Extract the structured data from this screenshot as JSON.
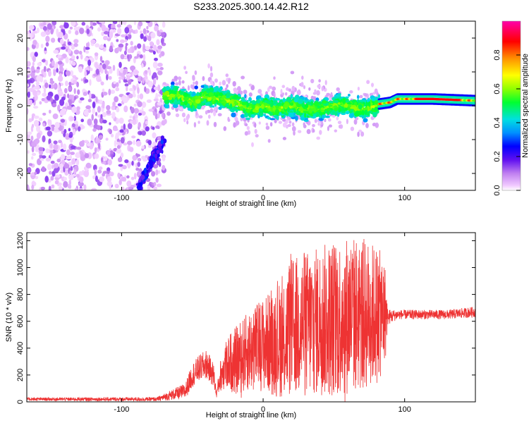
{
  "title": "S233.2025.300.14.42.R12",
  "chart_data": [
    {
      "type": "heatmap",
      "xlabel": "Height of straight line (km)",
      "ylabel": "Frequency (Hz)",
      "xlim": [
        -167,
        150
      ],
      "ylim": [
        -25,
        25
      ],
      "xticks": [
        -100,
        0,
        100
      ],
      "xtick_labels": [
        "-100",
        "0",
        "100"
      ],
      "yticks": [
        -20,
        -10,
        0,
        10,
        20
      ],
      "ytick_labels": [
        "-20",
        "-10",
        "0",
        "10",
        "20"
      ],
      "grid": false,
      "colorbar": {
        "label": "Normalized spectral amplitude",
        "range": [
          0,
          1
        ],
        "ticks": [
          0,
          0.2,
          0.4,
          0.6,
          0.8
        ],
        "tick_labels": [
          "0.0",
          "0.2",
          "0.4",
          "0.6",
          "0.8"
        ],
        "placement": "right"
      },
      "regions": [
        {
          "x": [
            -167,
            -70
          ],
          "freq": [
            -25,
            25
          ],
          "amplitude": [
            0.02,
            0.15
          ],
          "description": "scattered noise"
        },
        {
          "x": [
            -85,
            -70
          ],
          "freq": [
            -25,
            -10
          ],
          "amplitude": [
            0.15,
            0.3
          ]
        },
        {
          "x": [
            -70,
            82
          ],
          "freq": [
            -8,
            6
          ],
          "amplitude": [
            0.2,
            0.6
          ]
        },
        {
          "x": [
            82,
            150
          ],
          "freq": [
            0,
            3
          ],
          "amplitude": [
            0.6,
            1.0
          ]
        }
      ],
      "ridge": {
        "x": [
          -70,
          -60,
          -50,
          -40,
          -30,
          -20,
          -10,
          0,
          10,
          20,
          30,
          40,
          50,
          60,
          70,
          80,
          82,
          90,
          95,
          100,
          120,
          150
        ],
        "freq": [
          3,
          3,
          1,
          3,
          2,
          1,
          -1,
          0,
          -1,
          0,
          -1,
          -1,
          0,
          0,
          -1,
          0,
          0.5,
          1,
          2,
          2,
          2,
          1.5
        ]
      }
    },
    {
      "type": "line",
      "xlabel": "Height of straight line (km)",
      "ylabel": "SNR (10 * v/v)",
      "xlim": [
        -167,
        150
      ],
      "ylim": [
        0,
        1260
      ],
      "xticks": [
        -100,
        0,
        100
      ],
      "xtick_labels": [
        "-100",
        "0",
        "100"
      ],
      "yticks": [
        0,
        200,
        400,
        600,
        800,
        1000,
        1200
      ],
      "ytick_labels": [
        "0",
        "200",
        "400",
        "600",
        "800",
        "1000",
        "1200"
      ],
      "grid": false,
      "series": [
        {
          "color": "#ee3333",
          "envelope_x": [
            -167,
            -75,
            -55,
            -50,
            -45,
            -40,
            -35,
            -33,
            -30,
            -25,
            -20,
            -10,
            0,
            10,
            20,
            30,
            40,
            50,
            60,
            70,
            80,
            86,
            88,
            95,
            110,
            130,
            150
          ],
          "mean": [
            20,
            20,
            80,
            200,
            250,
            280,
            200,
            60,
            200,
            300,
            300,
            380,
            430,
            450,
            550,
            580,
            600,
            620,
            650,
            650,
            650,
            650,
            630,
            650,
            650,
            650,
            670
          ],
          "spread": [
            12,
            15,
            60,
            90,
            100,
            110,
            90,
            30,
            120,
            200,
            250,
            300,
            350,
            420,
            520,
            550,
            560,
            600,
            600,
            580,
            520,
            420,
            60,
            35,
            35,
            35,
            40
          ]
        }
      ]
    }
  ]
}
